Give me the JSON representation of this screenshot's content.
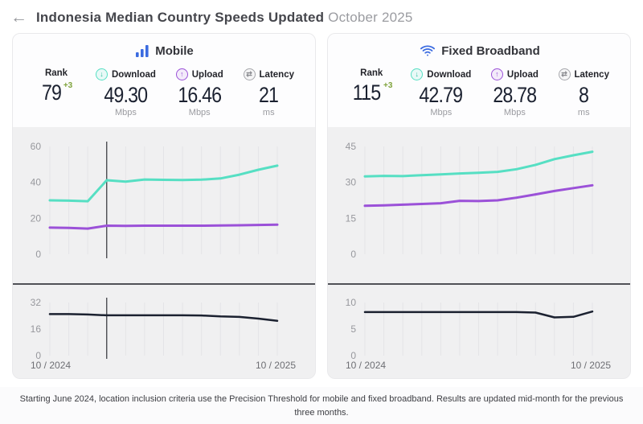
{
  "page": {
    "title": "Indonesia Median Country Speeds Updated",
    "title_suffix": "October 2025",
    "footer": "Starting June 2024, location inclusion criteria use the Precision Threshold for mobile and fixed broadband. Results are updated mid-month for the previous three months."
  },
  "icons": {
    "back": "←",
    "download": "↓",
    "upload": "↑",
    "latency": "⇄"
  },
  "colors": {
    "accent_blue": "#3b6be0",
    "teal": "#56dfc3",
    "purple": "#9b51d8",
    "navy": "#1b2130",
    "green_delta": "#7fa33c",
    "gridline": "#e4e4e7",
    "tick_label": "#97989d",
    "cursor": "#3f4046"
  },
  "cards": [
    {
      "title": "Mobile",
      "stats": [
        {
          "label": "Rank",
          "value": "79",
          "delta": "+3",
          "unit": ""
        },
        {
          "label": "Download",
          "value": "49.30",
          "unit": "Mbps"
        },
        {
          "label": "Upload",
          "value": "16.46",
          "unit": "Mbps"
        },
        {
          "label": "Latency",
          "value": "21",
          "unit": "ms"
        }
      ],
      "x_start_label": "10 / 2024",
      "x_end_label": "10 / 2025"
    },
    {
      "title": "Fixed Broadband",
      "stats": [
        {
          "label": "Rank",
          "value": "115",
          "delta": "+3",
          "unit": ""
        },
        {
          "label": "Download",
          "value": "42.79",
          "unit": "Mbps"
        },
        {
          "label": "Upload",
          "value": "28.78",
          "unit": "Mbps"
        },
        {
          "label": "Latency",
          "value": "8",
          "unit": "ms"
        }
      ],
      "x_start_label": "10 / 2024",
      "x_end_label": "10 / 2025"
    }
  ],
  "chart_data": [
    {
      "name": "mobile-speed",
      "type": "line",
      "x_range": [
        "10 / 2024",
        "10 / 2025"
      ],
      "months": 13,
      "ymax": 60,
      "yticks": [
        0,
        20,
        40,
        60
      ],
      "cursor_index": 3,
      "grid": true,
      "series": [
        {
          "name": "download",
          "color": "teal",
          "width": 3,
          "values": [
            30.0,
            29.8,
            29.5,
            41.2,
            40.4,
            41.6,
            41.4,
            41.3,
            41.5,
            42.2,
            44.3,
            47.0,
            49.3
          ]
        },
        {
          "name": "upload",
          "color": "purple",
          "width": 3,
          "values": [
            14.8,
            14.7,
            14.3,
            15.9,
            15.8,
            15.9,
            15.9,
            15.9,
            15.9,
            16.0,
            16.1,
            16.3,
            16.46
          ]
        }
      ]
    },
    {
      "name": "mobile-latency",
      "type": "line",
      "x_range": [
        "10 / 2024",
        "10 / 2025"
      ],
      "months": 13,
      "ymax": 32,
      "yticks": [
        0,
        16,
        32
      ],
      "cursor_index": 3,
      "grid": true,
      "series": [
        {
          "name": "latency",
          "color": "navy",
          "width": 2.5,
          "values": [
            25,
            25,
            24.8,
            24.3,
            24.3,
            24.3,
            24.3,
            24.3,
            24.2,
            23.6,
            23.3,
            22.3,
            21
          ]
        }
      ]
    },
    {
      "name": "fixed-speed",
      "type": "line",
      "x_range": [
        "10 / 2024",
        "10 / 2025"
      ],
      "months": 13,
      "ymax": 45,
      "yticks": [
        0,
        15,
        30,
        45
      ],
      "cursor_index": null,
      "grid": true,
      "series": [
        {
          "name": "download",
          "color": "teal",
          "width": 3,
          "values": [
            32.5,
            32.7,
            32.6,
            33.0,
            33.3,
            33.7,
            34.0,
            34.4,
            35.5,
            37.3,
            39.7,
            41.3,
            42.79
          ]
        },
        {
          "name": "upload",
          "color": "purple",
          "width": 3,
          "values": [
            20.2,
            20.4,
            20.7,
            21.0,
            21.3,
            22.3,
            22.2,
            22.5,
            23.6,
            25.0,
            26.4,
            27.6,
            28.78
          ]
        }
      ]
    },
    {
      "name": "fixed-latency",
      "type": "line",
      "x_range": [
        "10 / 2024",
        "10 / 2025"
      ],
      "months": 13,
      "ymax": 10,
      "yticks": [
        0,
        5,
        10
      ],
      "cursor_index": null,
      "grid": true,
      "series": [
        {
          "name": "latency",
          "color": "navy",
          "width": 2.5,
          "values": [
            8.2,
            8.2,
            8.2,
            8.2,
            8.2,
            8.2,
            8.2,
            8.2,
            8.2,
            8.1,
            7.2,
            7.3,
            8.3
          ]
        }
      ]
    }
  ]
}
